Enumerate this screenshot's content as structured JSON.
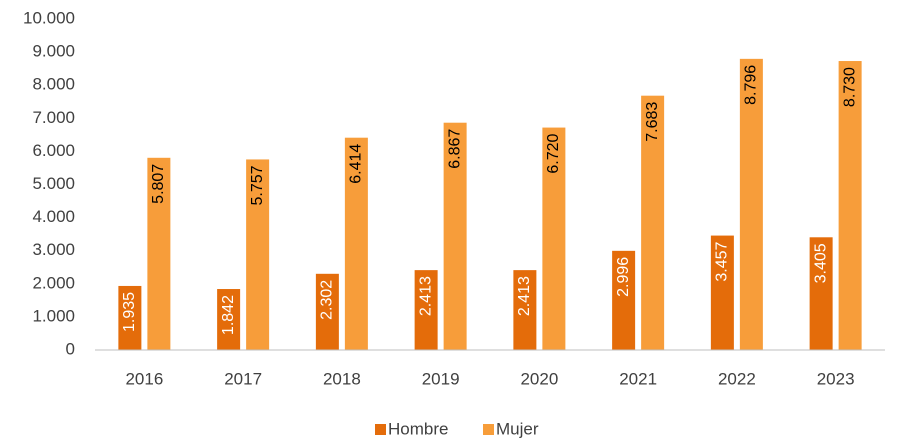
{
  "chart_data": {
    "type": "bar",
    "categories": [
      "2016",
      "2017",
      "2018",
      "2019",
      "2020",
      "2021",
      "2022",
      "2023"
    ],
    "series": [
      {
        "name": "Hombre",
        "color": "#e46c0a",
        "values": [
          1935,
          1842,
          2302,
          2413,
          2413,
          2996,
          3457,
          3405
        ],
        "value_labels": [
          "1.935",
          "1.842",
          "2.302",
          "2.413",
          "2.413",
          "2.996",
          "3.457",
          "3.405"
        ]
      },
      {
        "name": "Mujer",
        "color": "#f79d3a",
        "values": [
          5807,
          5757,
          6414,
          6867,
          6720,
          7683,
          8796,
          8730
        ],
        "value_labels": [
          "5.807",
          "5.757",
          "6.414",
          "6.867",
          "6.720",
          "7.683",
          "8.796",
          "8.730"
        ]
      }
    ],
    "ylim": [
      0,
      10000
    ],
    "yticks": [
      0,
      {
        "value": 1000,
        "label": "1.000"
      },
      {
        "value": 2000,
        "label": "2.000"
      },
      {
        "value": 3000,
        "label": "3.000"
      },
      {
        "value": 4000,
        "label": "4.000"
      },
      {
        "value": 5000,
        "label": "5.000"
      },
      {
        "value": 6000,
        "label": "6.000"
      },
      {
        "value": 7000,
        "label": "7.000"
      },
      {
        "value": 8000,
        "label": "8.000"
      },
      {
        "value": 9000,
        "label": "9.000"
      },
      {
        "value": 10000,
        "label": "10.000"
      }
    ],
    "grid": false,
    "legend": "bottom"
  }
}
